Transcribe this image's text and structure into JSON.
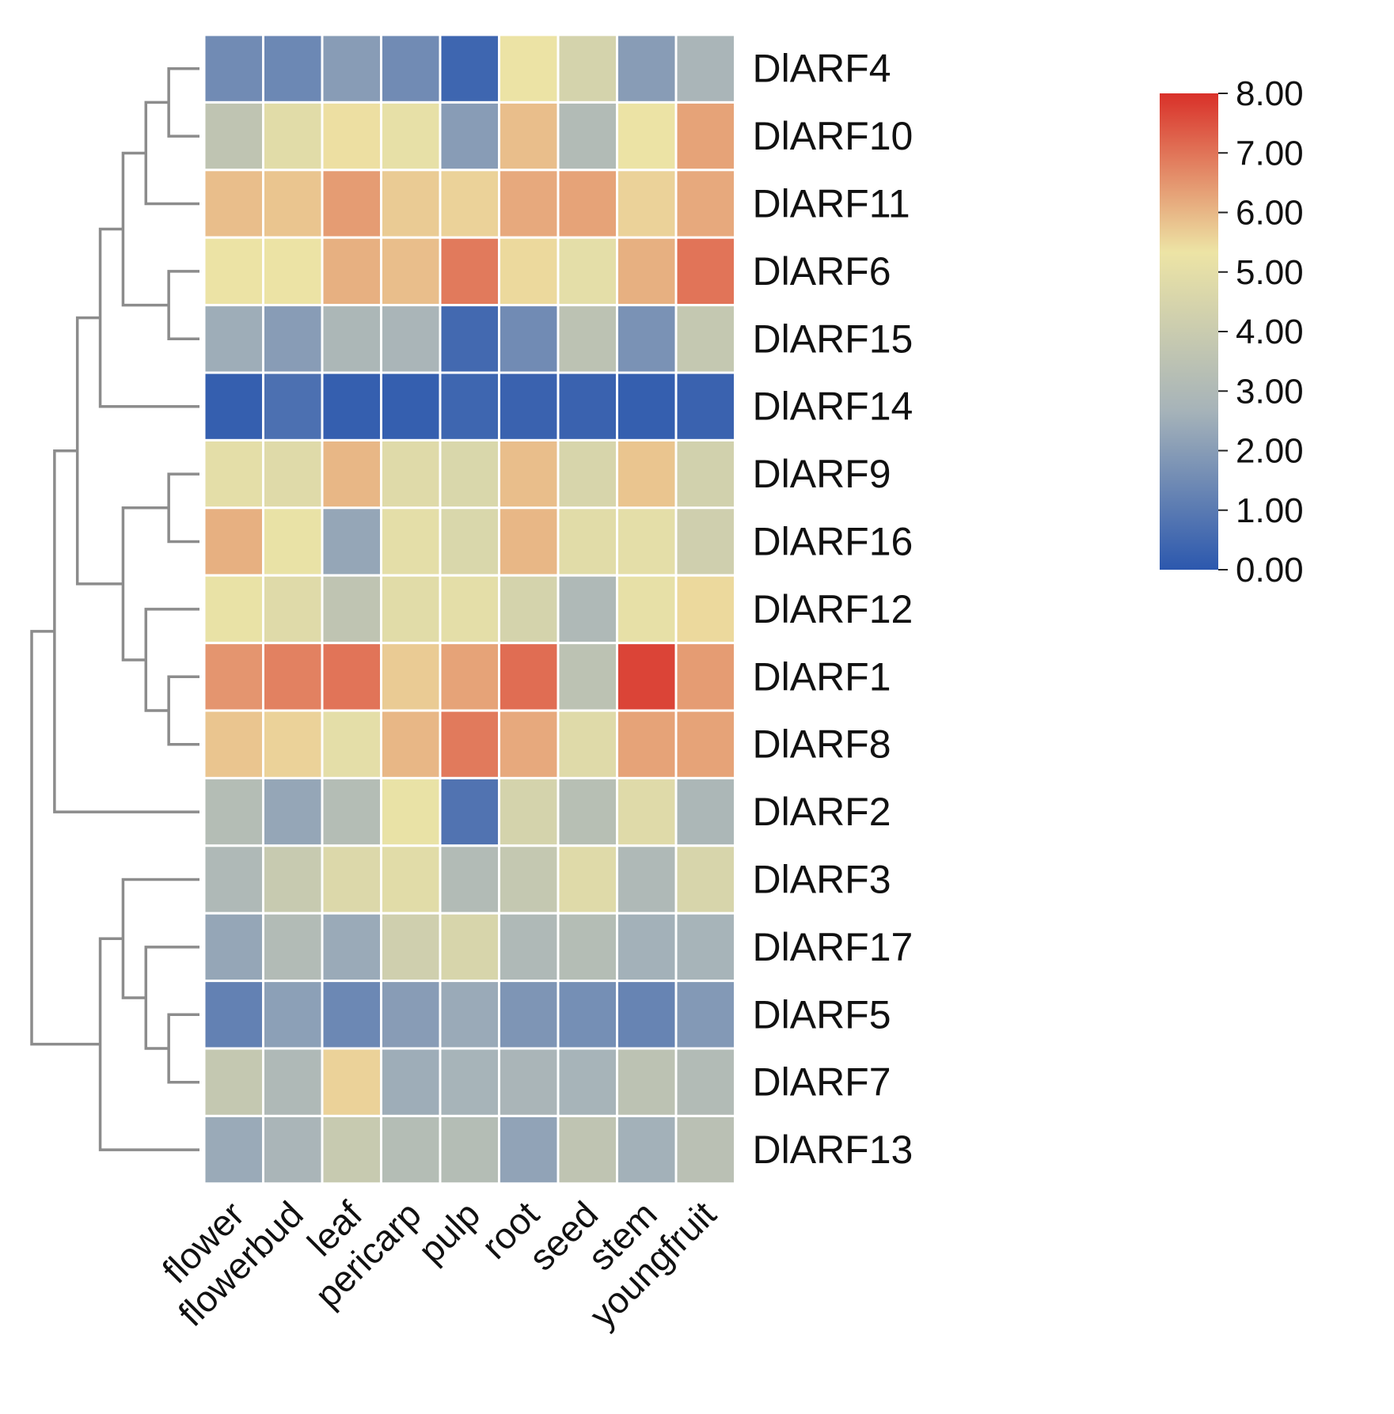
{
  "chart_data": {
    "type": "heatmap",
    "title": "",
    "columns": [
      "flower",
      "flowerbud",
      "leaf",
      "pericarp",
      "pulp",
      "root",
      "seed",
      "stem",
      "youngfruit"
    ],
    "rows": [
      "DlARF4",
      "DlARF10",
      "DlARF11",
      "DlARF6",
      "DlARF15",
      "DlARF14",
      "DlARF9",
      "DlARF16",
      "DlARF12",
      "DlARF1",
      "DlARF8",
      "DlARF2",
      "DlARF3",
      "DlARF17",
      "DlARF5",
      "DlARF7",
      "DlARF13"
    ],
    "values": [
      [
        1.5,
        1.4,
        2.0,
        1.5,
        0.4,
        5.3,
        4.4,
        2.0,
        2.8
      ],
      [
        3.6,
        4.9,
        5.4,
        5.1,
        2.0,
        5.9,
        3.1,
        5.3,
        6.3
      ],
      [
        5.9,
        5.8,
        6.4,
        5.7,
        5.6,
        6.2,
        6.3,
        5.6,
        6.2
      ],
      [
        5.3,
        5.3,
        6.1,
        5.9,
        6.9,
        5.5,
        5.0,
        6.1,
        7.0
      ],
      [
        2.5,
        2.0,
        2.9,
        2.8,
        0.5,
        1.5,
        3.5,
        1.7,
        3.8
      ],
      [
        0.2,
        0.7,
        0.2,
        0.2,
        0.4,
        0.3,
        0.3,
        0.2,
        0.3
      ],
      [
        5.0,
        4.8,
        6.0,
        4.8,
        4.6,
        5.9,
        4.5,
        5.8,
        4.3
      ],
      [
        6.1,
        5.2,
        2.3,
        5.0,
        4.6,
        6.0,
        4.9,
        5.0,
        4.2
      ],
      [
        5.2,
        4.8,
        3.6,
        4.9,
        5.0,
        4.4,
        3.0,
        5.1,
        5.5
      ],
      [
        6.5,
        6.8,
        7.0,
        5.7,
        6.3,
        7.1,
        3.5,
        7.7,
        6.4
      ],
      [
        5.8,
        5.6,
        5.0,
        6.0,
        6.9,
        6.2,
        4.8,
        6.3,
        6.3
      ],
      [
        3.2,
        2.3,
        3.2,
        5.2,
        0.8,
        4.4,
        3.3,
        4.8,
        2.9
      ],
      [
        3.0,
        3.9,
        4.7,
        4.9,
        3.1,
        3.8,
        4.8,
        3.0,
        4.5
      ],
      [
        2.3,
        3.1,
        2.4,
        4.2,
        4.5,
        3.0,
        3.2,
        2.6,
        2.7
      ],
      [
        1.2,
        2.1,
        1.4,
        2.0,
        2.4,
        1.8,
        1.6,
        1.3,
        1.9
      ],
      [
        3.8,
        3.0,
        5.6,
        2.5,
        2.7,
        2.8,
        2.7,
        3.5,
        3.1
      ],
      [
        2.4,
        2.8,
        3.9,
        3.2,
        3.2,
        2.2,
        3.6,
        2.6,
        3.4
      ]
    ],
    "color_scale": {
      "min": 0,
      "max": 8,
      "ticks": [
        "0.00",
        "1.00",
        "2.00",
        "3.00",
        "4.00",
        "5.00",
        "6.00",
        "7.00",
        "8.00"
      ],
      "stops": [
        "#2c58ae",
        "#a6b3b9",
        "#ede4a5",
        "#d93029"
      ]
    },
    "row_dendrogram": [
      [
        0,
        1
      ],
      [
        17,
        2
      ],
      [
        4,
        3
      ],
      [
        19,
        18
      ],
      [
        20,
        5
      ],
      [
        6,
        7
      ],
      [
        9,
        10
      ],
      [
        8,
        23
      ],
      [
        22,
        24
      ],
      [
        21,
        25
      ],
      [
        26,
        11
      ],
      [
        14,
        15
      ],
      [
        13,
        28
      ],
      [
        12,
        29
      ],
      [
        30,
        16
      ],
      [
        27,
        31
      ]
    ],
    "legend_position": "top-right",
    "xlabel": "",
    "ylabel": ""
  }
}
